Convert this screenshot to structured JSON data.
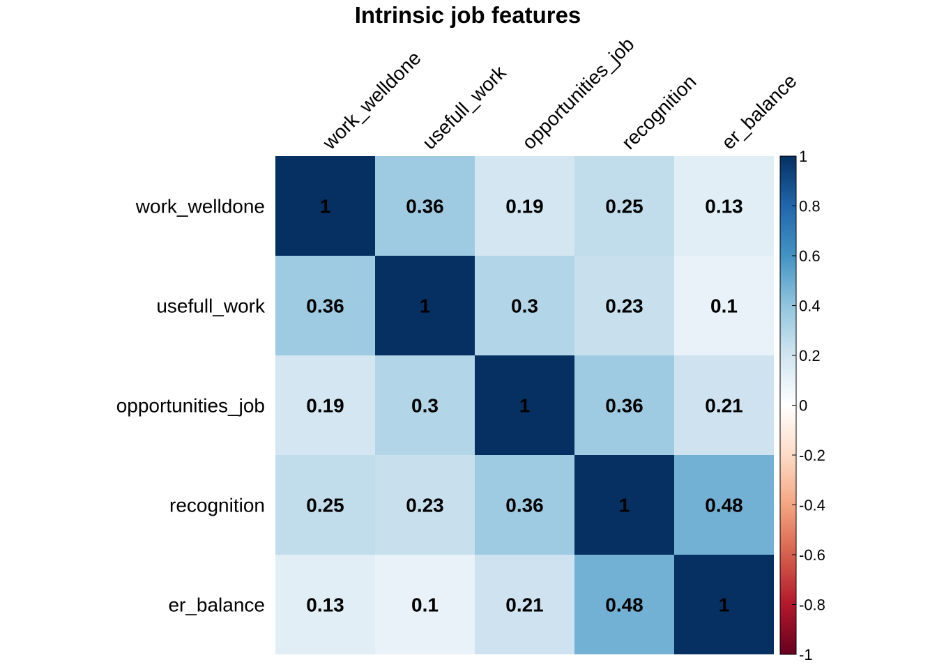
{
  "chart_data": {
    "type": "heatmap",
    "title": "Intrinsic job features",
    "rows": [
      "work_welldone",
      "usefull_work",
      "opportunities_job",
      "recognition",
      "er_balance"
    ],
    "columns": [
      "work_welldone",
      "usefull_work",
      "opportunities_job",
      "recognition",
      "er_balance"
    ],
    "values": [
      [
        1,
        0.36,
        0.19,
        0.25,
        0.13
      ],
      [
        0.36,
        1,
        0.3,
        0.23,
        0.1
      ],
      [
        0.19,
        0.3,
        1,
        0.36,
        0.21
      ],
      [
        0.25,
        0.23,
        0.36,
        1,
        0.48
      ],
      [
        0.13,
        0.1,
        0.21,
        0.48,
        1
      ]
    ],
    "colorbar": {
      "range": [
        -1,
        1
      ],
      "ticks": [
        "1",
        "0.8",
        "0.6",
        "0.4",
        "0.2",
        "0",
        "-0.2",
        "-0.4",
        "-0.6",
        "-0.8",
        "-1"
      ],
      "tick_values": [
        1,
        0.8,
        0.6,
        0.4,
        0.2,
        0,
        -0.2,
        -0.4,
        -0.6,
        -0.8,
        -1
      ],
      "colormap": [
        "#67001F",
        "#B2182B",
        "#D6604D",
        "#F4A582",
        "#FDDBC7",
        "#FFFFFF",
        "#D1E5F0",
        "#92C5DE",
        "#4393C3",
        "#2166AC",
        "#053061"
      ]
    }
  }
}
